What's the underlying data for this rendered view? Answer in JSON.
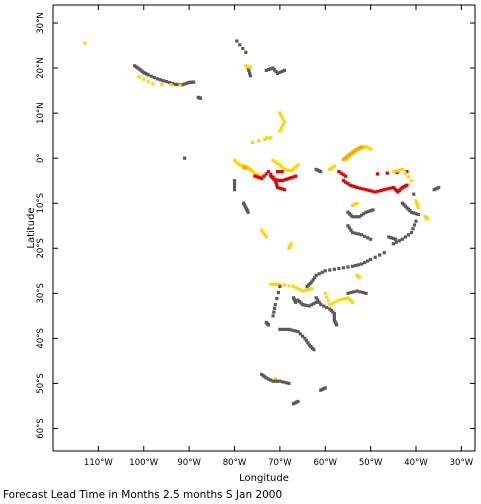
{
  "map": {
    "xlabel": "Longitude",
    "ylabel": "Latitude",
    "caption": "Forecast Lead Time in Months 2.5 months S Jan 2000",
    "colors": {
      "gray": "#5a5a5a",
      "yellow": "#ffd700",
      "orange": "#ffa500",
      "red": "#e00000"
    },
    "x_ticks": [
      {
        "lon": -110,
        "label": "110°W"
      },
      {
        "lon": -100,
        "label": "100°W"
      },
      {
        "lon": -90,
        "label": "90°W"
      },
      {
        "lon": -80,
        "label": "80°W"
      },
      {
        "lon": -70,
        "label": "70°W"
      },
      {
        "lon": -60,
        "label": "60°W"
      },
      {
        "lon": -50,
        "label": "50°W"
      },
      {
        "lon": -40,
        "label": "40°W"
      },
      {
        "lon": -30,
        "label": "30°W"
      }
    ],
    "y_ticks": [
      {
        "lat": 30,
        "label": "30°N"
      },
      {
        "lat": 20,
        "label": "20°N"
      },
      {
        "lat": 10,
        "label": "10°N"
      },
      {
        "lat": 0,
        "label": "0°"
      },
      {
        "lat": -10,
        "label": "10°S"
      },
      {
        "lat": -20,
        "label": "20°S"
      },
      {
        "lat": -30,
        "label": "30°S"
      },
      {
        "lat": -40,
        "label": "40°S"
      },
      {
        "lat": -50,
        "label": "50°S"
      },
      {
        "lat": -60,
        "label": "60°S"
      }
    ],
    "lon_range": [
      -120,
      -27
    ],
    "lat_range": [
      -65,
      34
    ]
  },
  "chart_data": {
    "type": "heatmap",
    "xlabel": "Longitude",
    "ylabel": "Latitude",
    "xlim": [
      -120,
      -27
    ],
    "ylim": [
      -65,
      34
    ],
    "grid": false,
    "segments": [
      {
        "c": "gray",
        "pts": [
          [
            -102,
            20.5
          ],
          [
            -101,
            19.8
          ],
          [
            -100,
            19
          ],
          [
            -99,
            18.5
          ],
          [
            -97,
            17.6
          ],
          [
            -95,
            17
          ],
          [
            -93,
            16.4
          ],
          [
            -91.5,
            16.3
          ],
          [
            -90,
            16.8
          ],
          [
            -89,
            16.9
          ]
        ]
      },
      {
        "c": "gray",
        "pts": [
          [
            -88,
            13.5
          ],
          [
            -87.5,
            13.3
          ]
        ]
      },
      {
        "c": "gray",
        "pts": [
          [
            -91,
            0
          ]
        ]
      },
      {
        "c": "yellow",
        "pts": [
          [
            -101,
            18
          ],
          [
            -98,
            16.5
          ],
          [
            -92,
            16.2
          ]
        ]
      },
      {
        "c": "yellow",
        "pts": [
          [
            -113,
            25.5
          ]
        ]
      },
      {
        "c": "gray",
        "pts": [
          [
            -79.5,
            26
          ],
          [
            -77.5,
            23.5
          ]
        ]
      },
      {
        "c": "gray",
        "pts": [
          [
            -77,
            20
          ],
          [
            -76.5,
            18.3
          ]
        ]
      },
      {
        "c": "gray",
        "pts": [
          [
            -73,
            19.5
          ],
          [
            -71.5,
            20
          ],
          [
            -70.5,
            18.8
          ],
          [
            -69,
            19.5
          ]
        ]
      },
      {
        "c": "yellow",
        "pts": [
          [
            -77.5,
            20.5
          ],
          [
            -76.5,
            20.2
          ]
        ]
      },
      {
        "c": "yellow",
        "pts": [
          [
            -70,
            10
          ],
          [
            -69,
            8
          ],
          [
            -70,
            6
          ]
        ]
      },
      {
        "c": "yellow",
        "pts": [
          [
            -73,
            4.5
          ],
          [
            -72,
            4.5
          ],
          [
            -76,
            3.5
          ]
        ]
      },
      {
        "c": "yellow",
        "pts": [
          [
            -80,
            -0.5
          ],
          [
            -79,
            -1.5
          ],
          [
            -77.5,
            -1.8
          ],
          [
            -76.5,
            -2.5
          ],
          [
            -75.5,
            -3.5
          ],
          [
            -74,
            -4
          ]
        ]
      },
      {
        "c": "yellow",
        "pts": [
          [
            -71.5,
            -0.5
          ],
          [
            -70,
            -1.5
          ],
          [
            -69,
            -2.5
          ],
          [
            -67.5,
            -2.8
          ],
          [
            -66,
            -1.5
          ]
        ]
      },
      {
        "c": "yellow",
        "pts": [
          [
            -55.5,
            -0.3
          ],
          [
            -55,
            0.3
          ],
          [
            -54,
            1
          ],
          [
            -53,
            1.8
          ],
          [
            -52,
            2.3
          ],
          [
            -51,
            2.5
          ],
          [
            -50,
            2
          ]
        ]
      },
      {
        "c": "orange",
        "pts": [
          [
            -56,
            -0.3
          ],
          [
            -55,
            0.5
          ],
          [
            -54,
            1.3
          ],
          [
            -53,
            2
          ],
          [
            -52,
            2.5
          ]
        ]
      },
      {
        "c": "orange",
        "pts": [
          [
            -78,
            -2
          ],
          [
            -77.5,
            -2.2
          ]
        ]
      },
      {
        "c": "yellow",
        "pts": [
          [
            -59,
            -2.5
          ],
          [
            -58,
            -1.8
          ]
        ]
      },
      {
        "c": "red",
        "pts": [
          [
            -75.5,
            -4
          ],
          [
            -74,
            -4.5
          ],
          [
            -72.5,
            -3
          ],
          [
            -71,
            -4.8
          ],
          [
            -69.5,
            -5
          ],
          [
            -68,
            -4.5
          ],
          [
            -66.5,
            -4
          ]
        ]
      },
      {
        "c": "red",
        "pts": [
          [
            -72,
            -4
          ],
          [
            -71,
            -5
          ],
          [
            -70.5,
            -6.5
          ],
          [
            -69,
            -7
          ]
        ]
      },
      {
        "c": "red",
        "pts": [
          [
            -70.5,
            -3
          ],
          [
            -69.5,
            -3
          ]
        ]
      },
      {
        "c": "red",
        "pts": [
          [
            -57,
            -3
          ],
          [
            -55.5,
            -4
          ]
        ]
      },
      {
        "c": "red",
        "pts": [
          [
            -56,
            -5
          ],
          [
            -54.5,
            -6
          ],
          [
            -53,
            -6.5
          ],
          [
            -51,
            -7
          ],
          [
            -49,
            -7.5
          ],
          [
            -47,
            -7
          ],
          [
            -45,
            -6.5
          ],
          [
            -44,
            -7.5
          ],
          [
            -43,
            -6.5
          ],
          [
            -42,
            -6
          ]
        ]
      },
      {
        "c": "red",
        "pts": [
          [
            -48.5,
            -3.5
          ],
          [
            -42,
            -3
          ]
        ]
      },
      {
        "c": "yellow",
        "pts": [
          [
            -45,
            -3
          ],
          [
            -43,
            -2.5
          ],
          [
            -41,
            -5
          ]
        ]
      },
      {
        "c": "yellow",
        "pts": [
          [
            -40,
            -9.5
          ],
          [
            -39.5,
            -11
          ]
        ]
      },
      {
        "c": "yellow",
        "pts": [
          [
            -38,
            -13
          ],
          [
            -37.5,
            -13.5
          ]
        ]
      },
      {
        "c": "yellow",
        "pts": [
          [
            -54,
            -10.5
          ],
          [
            -53,
            -10
          ]
        ]
      },
      {
        "c": "yellow",
        "pts": [
          [
            -74,
            -16
          ],
          [
            -73,
            -17.5
          ]
        ]
      },
      {
        "c": "yellow",
        "pts": [
          [
            -68,
            -20
          ],
          [
            -67.5,
            -19
          ]
        ]
      },
      {
        "c": "yellow",
        "pts": [
          [
            -53,
            -26
          ],
          [
            -52.5,
            -26.5
          ]
        ]
      },
      {
        "c": "yellow",
        "pts": [
          [
            -72,
            -28
          ],
          [
            -70,
            -28
          ],
          [
            -67,
            -28.5
          ],
          [
            -65,
            -29.5
          ],
          [
            -63,
            -29
          ]
        ]
      },
      {
        "c": "yellow",
        "pts": [
          [
            -60,
            -30
          ],
          [
            -59,
            -32.5
          ],
          [
            -57,
            -31.5
          ],
          [
            -55,
            -31
          ],
          [
            -54,
            -32
          ]
        ]
      },
      {
        "c": "yellow",
        "pts": [
          [
            -71,
            -49
          ]
        ]
      },
      {
        "c": "gray",
        "pts": [
          [
            -80,
            -5
          ],
          [
            -80,
            -7
          ]
        ]
      },
      {
        "c": "gray",
        "pts": [
          [
            -78,
            -10
          ],
          [
            -77.5,
            -11
          ],
          [
            -77,
            -12
          ]
        ]
      },
      {
        "c": "gray",
        "pts": [
          [
            -62,
            -2.5
          ],
          [
            -61,
            -3
          ]
        ]
      },
      {
        "c": "gray",
        "pts": [
          [
            -36,
            -7
          ],
          [
            -35,
            -6.5
          ]
        ]
      },
      {
        "c": "gray",
        "pts": [
          [
            -40.5,
            -8
          ]
        ]
      },
      {
        "c": "gray",
        "pts": [
          [
            -43,
            -10
          ],
          [
            -42,
            -11
          ],
          [
            -41,
            -12
          ],
          [
            -39.5,
            -12.5
          ]
        ]
      },
      {
        "c": "gray",
        "pts": [
          [
            -55,
            -12
          ],
          [
            -54,
            -13
          ],
          [
            -52.5,
            -13
          ],
          [
            -51,
            -12
          ],
          [
            -49.5,
            -11.5
          ]
        ]
      },
      {
        "c": "gray",
        "pts": [
          [
            -55,
            -15
          ],
          [
            -54,
            -16.5
          ],
          [
            -52,
            -17
          ],
          [
            -50,
            -18
          ]
        ]
      },
      {
        "c": "gray",
        "pts": [
          [
            -46,
            -17.5
          ],
          [
            -44.5,
            -18
          ]
        ]
      },
      {
        "c": "gray",
        "pts": [
          [
            -40,
            -14
          ],
          [
            -41,
            -16.5
          ],
          [
            -43,
            -18
          ],
          [
            -45,
            -19
          ]
        ]
      },
      {
        "c": "gray",
        "pts": [
          [
            -47,
            -21
          ],
          [
            -50,
            -22.5
          ],
          [
            -52,
            -23.5
          ],
          [
            -54,
            -24
          ],
          [
            -57,
            -24.5
          ],
          [
            -60,
            -25
          ],
          [
            -62,
            -26
          ],
          [
            -63,
            -27.5
          ],
          [
            -64,
            -28.5
          ]
        ]
      },
      {
        "c": "gray",
        "pts": [
          [
            -62,
            -31
          ],
          [
            -61,
            -32.5
          ],
          [
            -59,
            -33.5
          ],
          [
            -58,
            -34.5
          ],
          [
            -58,
            -36
          ],
          [
            -57.5,
            -37
          ]
        ]
      },
      {
        "c": "gray",
        "pts": [
          [
            -66,
            -31.5
          ],
          [
            -65,
            -32.5
          ],
          [
            -63.5,
            -32.8
          ],
          [
            -62,
            -32
          ]
        ]
      },
      {
        "c": "gray",
        "pts": [
          [
            -70,
            -28.5
          ],
          [
            -71,
            -32.5
          ],
          [
            -71.5,
            -35
          ]
        ]
      },
      {
        "c": "gray",
        "pts": [
          [
            -73,
            -36.5
          ],
          [
            -72.5,
            -37
          ]
        ]
      },
      {
        "c": "gray",
        "pts": [
          [
            -70,
            -38
          ],
          [
            -68,
            -38
          ],
          [
            -66,
            -38.5
          ],
          [
            -64.5,
            -40
          ],
          [
            -63.5,
            -41.5
          ],
          [
            -62.5,
            -42.5
          ]
        ]
      },
      {
        "c": "gray",
        "pts": [
          [
            -67,
            -31
          ],
          [
            -66.5,
            -32
          ]
        ]
      },
      {
        "c": "gray",
        "pts": [
          [
            -55,
            -30
          ],
          [
            -53,
            -29.5
          ],
          [
            -51,
            -30
          ]
        ]
      },
      {
        "c": "gray",
        "pts": [
          [
            -74,
            -48
          ],
          [
            -73,
            -48.8
          ],
          [
            -71.5,
            -49.5
          ],
          [
            -70,
            -49.5
          ],
          [
            -68,
            -50
          ]
        ]
      },
      {
        "c": "gray",
        "pts": [
          [
            -67,
            -54.5
          ],
          [
            -66,
            -54
          ]
        ]
      },
      {
        "c": "gray",
        "pts": [
          [
            -61,
            -51.5
          ],
          [
            -60,
            -51
          ]
        ]
      }
    ]
  }
}
